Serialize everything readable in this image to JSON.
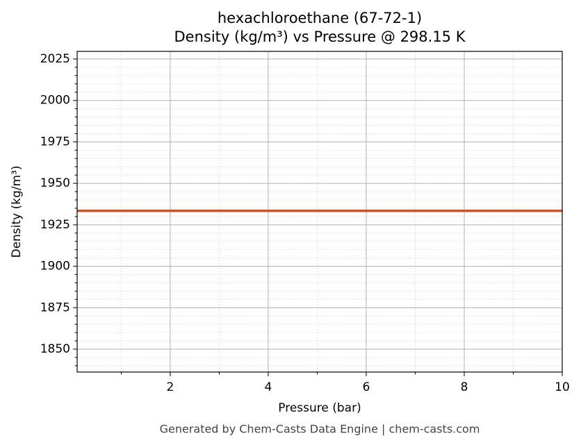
{
  "chart_data": {
    "type": "line",
    "title": "hexachloroethane (67-72-1)",
    "subtitle": "Density (kg/m³) vs Pressure @ 298.15 K",
    "x_label": "Pressure (bar)",
    "y_label": "Density (kg/m³)",
    "footer": "Generated by Chem-Casts Data Engine | chem-casts.com",
    "x": [
      0.1,
      10
    ],
    "series": [
      {
        "name": "Density",
        "color": "#c8552b",
        "values": [
          1933.4,
          1933.4
        ]
      }
    ],
    "xlim": [
      0.1,
      10
    ],
    "xticks": [
      2,
      4,
      6,
      8,
      10
    ],
    "xminorticks": [
      1,
      3,
      5,
      7,
      9
    ],
    "ylim": [
      1836.2,
      2029.6
    ],
    "yticks": [
      1850,
      1875,
      1900,
      1925,
      1950,
      1975,
      2000,
      2025
    ],
    "yminorticks": [
      1840,
      1845,
      1855,
      1860,
      1865,
      1870,
      1880,
      1885,
      1890,
      1895,
      1905,
      1910,
      1915,
      1920,
      1930,
      1935,
      1940,
      1945,
      1955,
      1960,
      1965,
      1970,
      1980,
      1985,
      1990,
      1995,
      2005,
      2010,
      2015,
      2020
    ],
    "grid": true
  }
}
